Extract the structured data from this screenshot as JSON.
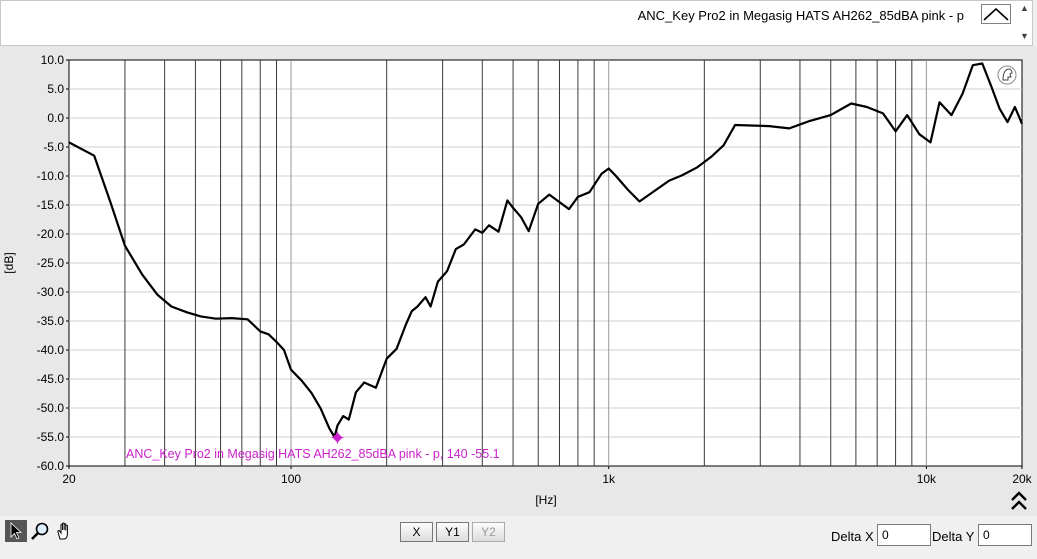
{
  "legend": {
    "label": "ANC_Key Pro2 in Megasig HATS AH262_85dBA pink - p",
    "swatch_icon": "line-plot-swatch-icon",
    "scroll_icons": [
      "scroll-up-icon",
      "scroll-down-icon"
    ]
  },
  "chart_data": {
    "type": "line",
    "xscale": "log",
    "xlabel": "[Hz]",
    "ylabel": "[dB]",
    "xlim": [
      20,
      20000
    ],
    "ylim": [
      -60,
      10
    ],
    "grid": true,
    "x_tick_labels": [
      "20",
      "100",
      "1k",
      "10k",
      "20k"
    ],
    "y_tick_labels": [
      "10.0",
      "5.0",
      "0.0",
      "-5.0",
      "-10.0",
      "-15.0",
      "-20.0",
      "-25.0",
      "-30.0",
      "-35.0",
      "-40.0",
      "-45.0",
      "-50.0",
      "-55.0",
      "-60.0"
    ],
    "series": [
      {
        "name": "ANC_Key Pro2 in Megasig HATS AH262_85dBA pink - p",
        "color": "#000000",
        "x": [
          20,
          24,
          27,
          30,
          34,
          38,
          42,
          47,
          52,
          58,
          65,
          73,
          80,
          85,
          90,
          95,
          100,
          108,
          116,
          124,
          132,
          137,
          140,
          146,
          152,
          160,
          170,
          185,
          200,
          215,
          230,
          240,
          250,
          265,
          275,
          290,
          310,
          330,
          350,
          380,
          400,
          420,
          450,
          480,
          500,
          530,
          560,
          600,
          650,
          700,
          750,
          800,
          870,
          950,
          1000,
          1050,
          1150,
          1250,
          1400,
          1550,
          1700,
          1900,
          2100,
          2300,
          2500,
          2800,
          3200,
          3700,
          4300,
          5000,
          5800,
          6500,
          7300,
          8000,
          8700,
          9500,
          10300,
          11000,
          12000,
          13000,
          14000,
          15000,
          16000,
          17000,
          18000,
          19000,
          20000
        ],
        "y": [
          -4.2,
          -6.5,
          -14.5,
          -22,
          -27,
          -30.5,
          -32.5,
          -33.5,
          -34.2,
          -34.6,
          -34.5,
          -34.7,
          -36.8,
          -37.3,
          -38.6,
          -40,
          -43.4,
          -45.3,
          -47.4,
          -50.1,
          -53.5,
          -55,
          -53,
          -51.4,
          -52,
          -47.3,
          -45.6,
          -46.5,
          -41.5,
          -39.8,
          -35.6,
          -33.3,
          -32.5,
          -30.9,
          -32.5,
          -28.2,
          -26.4,
          -22.6,
          -21.8,
          -19.2,
          -19.8,
          -18.5,
          -19.6,
          -14.2,
          -15.5,
          -17.1,
          -19.5,
          -14.8,
          -13.2,
          -14.5,
          -15.7,
          -13.6,
          -12.8,
          -9.6,
          -8.7,
          -9.9,
          -12.4,
          -14.4,
          -12.5,
          -10.8,
          -9.9,
          -8.5,
          -6.7,
          -4.7,
          -1.2,
          -1.3,
          -1.4,
          -1.8,
          -0.5,
          0.5,
          2.5,
          1.9,
          0.8,
          -2.3,
          0.5,
          -2.8,
          -4.2,
          2.7,
          0.5,
          4.2,
          9.1,
          9.4,
          5.5,
          1.6,
          -0.7,
          1.9,
          -1.0
        ]
      }
    ],
    "cursor": {
      "label": "ANC_Key Pro2 in Megasig HATS AH262_85dBA pink - p,  140  -55.1",
      "x": 140,
      "y": -55.1,
      "color": "#cc22cc"
    },
    "cursor_icon": "cursor-lock-icon",
    "expand_icon": "expand-up-icon"
  },
  "toolbar": {
    "tools": [
      {
        "name": "pointer-tool",
        "icon": "arrow-pointer-icon",
        "active": true
      },
      {
        "name": "zoom-tool",
        "icon": "magnifier-icon",
        "active": false
      },
      {
        "name": "pan-tool",
        "icon": "hand-icon",
        "active": false
      }
    ],
    "x_button": "X",
    "y1_button": "Y1",
    "y2_button": "Y2",
    "delta_x_label": "Delta X",
    "delta_x_value": "0",
    "delta_y_label": "Delta Y",
    "delta_y_value": "0"
  }
}
